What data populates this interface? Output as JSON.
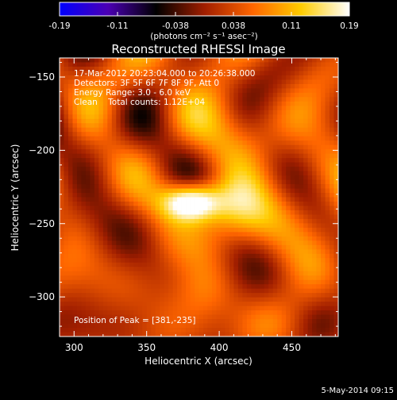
{
  "chart_data": {
    "type": "heatmap",
    "title": "Reconstructed RHESSI Image",
    "xlabel": "Heliocentric X (arcsec)",
    "ylabel": "Heliocentric Y (arcsec)",
    "xlim": [
      290,
      482
    ],
    "ylim": [
      -327,
      -137
    ],
    "x_ticks": [
      300,
      350,
      400,
      450
    ],
    "y_ticks": [
      -150,
      -200,
      -250,
      -300
    ],
    "colorbar": {
      "label": "(photons cm⁻² s⁻¹ asec⁻²)",
      "min": -0.19,
      "max": 0.19,
      "tick_labels": [
        "-0.19",
        "-0.11",
        "-0.038",
        "0.038",
        "0.11",
        "0.19"
      ],
      "colormap": [
        "#0000ff",
        "#4b00b4",
        "#000000",
        "#a01e00",
        "#ff6600",
        "#ffcc00",
        "#ffffff"
      ]
    },
    "annotations": [
      "17-Mar-2012 20:23:04.000 to 20:26:38.000",
      "Detectors: 3F 5F 6F 7F 8F 9F, Att 0",
      "Energy Range: 3.0 - 6.0 keV",
      "Clean    Total counts: 1.12E+04"
    ],
    "peak_label": "Position of Peak = [381,-235]",
    "peak": {
      "x": 381,
      "y": -235,
      "value": 0.19
    },
    "secondary_sources": [
      {
        "x": 410,
        "y": -240,
        "value": 0.1
      },
      {
        "x": 390,
        "y": -295,
        "value": 0.05
      }
    ],
    "grid": false,
    "legend": "none"
  },
  "footer": {
    "timestamp": "5-May-2014 09:15"
  }
}
